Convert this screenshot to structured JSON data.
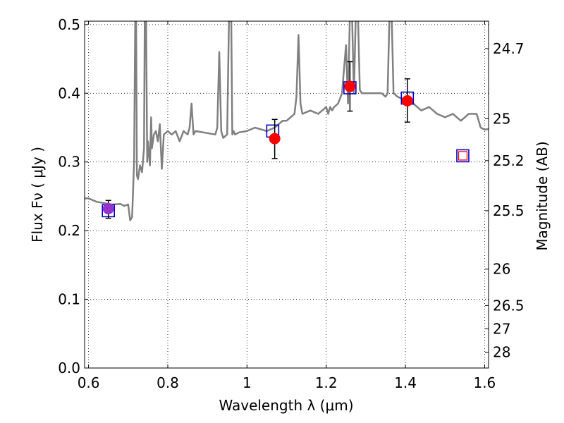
{
  "chart_data": {
    "type": "line",
    "xlabel": "Wavelength  λ (μm)",
    "ylabel_left": "Flux  Fν  ( μJy )",
    "ylabel_right": "Magnitude (AB)",
    "xlim": [
      0.59,
      1.61
    ],
    "ylim": [
      0.0,
      0.505
    ],
    "x_ticks": [
      {
        "value": 0.6,
        "label": "0.6"
      },
      {
        "value": 0.8,
        "label": "0.8"
      },
      {
        "value": 1.0,
        "label": "1"
      },
      {
        "value": 1.2,
        "label": "1.2"
      },
      {
        "value": 1.4,
        "label": "1.4"
      },
      {
        "value": 1.6,
        "label": "1.6"
      }
    ],
    "y_ticks": [
      {
        "value": 0.0,
        "label": "0.0"
      },
      {
        "value": 0.1,
        "label": "0.1"
      },
      {
        "value": 0.2,
        "label": "0.2"
      },
      {
        "value": 0.3,
        "label": "0.3"
      },
      {
        "value": 0.4,
        "label": "0.4"
      },
      {
        "value": 0.5,
        "label": "0.5"
      }
    ],
    "right_ticks": [
      {
        "flux": 0.465,
        "label": "24.7"
      },
      {
        "flux": 0.363,
        "label": "25"
      },
      {
        "flux": 0.302,
        "label": "25.2"
      },
      {
        "flux": 0.229,
        "label": "25.5"
      },
      {
        "flux": 0.144,
        "label": "26"
      },
      {
        "flux": 0.091,
        "label": "26.5"
      },
      {
        "flux": 0.057,
        "label": "27"
      },
      {
        "flux": 0.023,
        "label": "28"
      }
    ],
    "grid": true,
    "colors": {
      "model": "#808080",
      "measured": "#ff0000",
      "measured_first": "#9932cc",
      "model_band": "#0000cc",
      "open_square_inner": "#ff0000",
      "errorbar": "#000000"
    },
    "model_spectrum": {
      "x": [
        0.59,
        0.6,
        0.62,
        0.64,
        0.66,
        0.68,
        0.69,
        0.7,
        0.705,
        0.71,
        0.715,
        0.718,
        0.72,
        0.722,
        0.725,
        0.73,
        0.735,
        0.74,
        0.742,
        0.745,
        0.748,
        0.75,
        0.755,
        0.758,
        0.76,
        0.765,
        0.77,
        0.775,
        0.78,
        0.785,
        0.79,
        0.8,
        0.81,
        0.82,
        0.83,
        0.84,
        0.85,
        0.855,
        0.86,
        0.865,
        0.87,
        0.88,
        0.9,
        0.92,
        0.925,
        0.93,
        0.935,
        0.94,
        0.95,
        0.955,
        0.96,
        0.963,
        0.966,
        0.97,
        0.98,
        1.0,
        1.02,
        1.05,
        1.07,
        1.08,
        1.09,
        1.1,
        1.12,
        1.125,
        1.13,
        1.135,
        1.14,
        1.16,
        1.18,
        1.2,
        1.205,
        1.21,
        1.215,
        1.22,
        1.23,
        1.24,
        1.25,
        1.255,
        1.26,
        1.265,
        1.27,
        1.275,
        1.28,
        1.285,
        1.29,
        1.3,
        1.32,
        1.34,
        1.35,
        1.355,
        1.36,
        1.365,
        1.37,
        1.38,
        1.4,
        1.42,
        1.44,
        1.46,
        1.48,
        1.5,
        1.52,
        1.54,
        1.56,
        1.58,
        1.59,
        1.6,
        1.61
      ],
      "y": [
        0.247,
        0.247,
        0.242,
        0.24,
        0.238,
        0.239,
        0.236,
        0.238,
        0.215,
        0.22,
        0.3,
        0.52,
        0.52,
        0.28,
        0.275,
        0.295,
        0.285,
        0.32,
        0.52,
        0.52,
        0.3,
        0.33,
        0.295,
        0.365,
        0.32,
        0.34,
        0.345,
        0.33,
        0.355,
        0.29,
        0.34,
        0.345,
        0.34,
        0.345,
        0.33,
        0.345,
        0.34,
        0.35,
        0.385,
        0.34,
        0.345,
        0.344,
        0.342,
        0.34,
        0.35,
        0.46,
        0.345,
        0.335,
        0.34,
        0.52,
        0.52,
        0.34,
        0.345,
        0.34,
        0.343,
        0.345,
        0.35,
        0.345,
        0.35,
        0.355,
        0.36,
        0.36,
        0.37,
        0.395,
        0.485,
        0.385,
        0.37,
        0.375,
        0.37,
        0.38,
        0.37,
        0.38,
        0.375,
        0.38,
        0.385,
        0.4,
        0.47,
        0.385,
        0.52,
        0.52,
        0.4,
        0.52,
        0.52,
        0.405,
        0.4,
        0.4,
        0.4,
        0.4,
        0.395,
        0.4,
        0.52,
        0.52,
        0.4,
        0.395,
        0.39,
        0.385,
        0.375,
        0.38,
        0.37,
        0.365,
        0.37,
        0.36,
        0.37,
        0.37,
        0.35,
        0.347,
        0.348
      ]
    },
    "observed_points": [
      {
        "x": 0.65,
        "y": 0.232,
        "err_low": 0.218,
        "err_high": 0.244
      },
      {
        "x": 1.07,
        "y": 0.334,
        "err_low": 0.305,
        "err_high": 0.362
      },
      {
        "x": 1.26,
        "y": 0.41,
        "err_low": 0.374,
        "err_high": 0.446
      },
      {
        "x": 1.405,
        "y": 0.389,
        "err_low": 0.358,
        "err_high": 0.421
      }
    ],
    "model_band_fluxes": [
      {
        "x": 0.65,
        "y": 0.229
      },
      {
        "x": 1.065,
        "y": 0.345
      },
      {
        "x": 1.26,
        "y": 0.408
      },
      {
        "x": 1.405,
        "y": 0.393
      },
      {
        "x": 1.545,
        "y": 0.309
      }
    ]
  }
}
